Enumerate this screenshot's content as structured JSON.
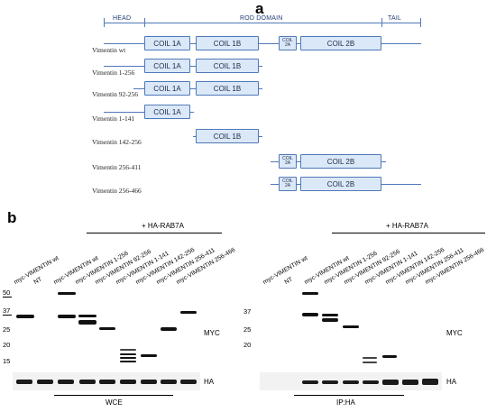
{
  "panel_a": {
    "letter": "a",
    "domains": {
      "head": "HEAD",
      "rod": "ROD DOMAIN",
      "tail": "TAIL"
    },
    "coils": {
      "c1a": "COIL 1A",
      "c1b": "COIL 1B",
      "c2a_line1": "COIL",
      "c2a_line2": "2A",
      "c2b": "COIL 2B"
    },
    "constructs": [
      "Vimentin wt",
      "Vimentin 1-256",
      "Vimentin 92-256",
      "Vimentin 1-141",
      "Vimentin 142-256",
      "Vimentin 256-411",
      "Vimentin 256-466"
    ]
  },
  "panel_b": {
    "letter": "b",
    "treatment_label": "+ HA-RAB7A",
    "lanes": [
      "myc-VIMENTIN wt",
      "NT",
      "myc-VIMENTIN wt",
      "myc-VIMENTIN 1-256",
      "myc-VIMENTIN 92-256",
      "myc-VIMENTIN 1-141",
      "myc-VIMENTIN 142-256",
      "myc-VIMENTIN 256-411",
      "myc-VIMENTIN 256-466"
    ],
    "mw_markers": [
      "50",
      "37",
      "25",
      "20",
      "15"
    ],
    "blot_labels": {
      "myc": "MYC",
      "ha": "HA"
    },
    "bottom_labels": {
      "left": "WCE",
      "right": "IP:HA"
    }
  }
}
